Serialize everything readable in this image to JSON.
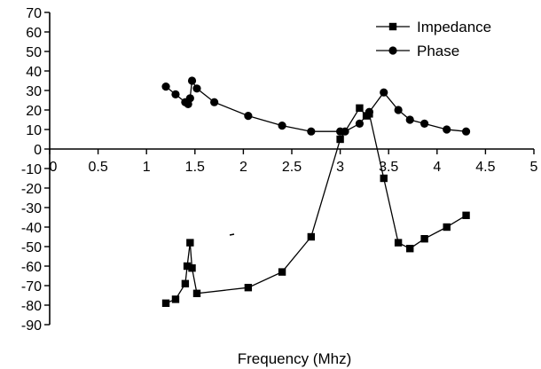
{
  "chart_data": {
    "type": "line",
    "title": "",
    "xlabel": "Frequency (Mhz)",
    "ylabel": "",
    "xlim": [
      0,
      5
    ],
    "ylim": [
      -90,
      70
    ],
    "xticks": [
      "0",
      "0.5",
      "1",
      "1.5",
      "2",
      "2.5",
      "3",
      "3.5",
      "4",
      "4.5",
      "5"
    ],
    "yticks": [
      "70",
      "60",
      "50",
      "40",
      "30",
      "20",
      "10",
      "0",
      "-10",
      "-20",
      "-30",
      "-40",
      "-50",
      "-60",
      "-70",
      "-80",
      "-90"
    ],
    "grid": false,
    "legend": "top-right",
    "series": [
      {
        "name": "Impedance",
        "marker": "square",
        "color": "#000000",
        "points": [
          [
            1.2,
            -79
          ],
          [
            1.3,
            -77
          ],
          [
            1.4,
            -69
          ],
          [
            1.42,
            -60
          ],
          [
            1.45,
            -48
          ],
          [
            1.47,
            -61
          ],
          [
            1.52,
            -74
          ],
          [
            2.05,
            -71
          ],
          [
            2.4,
            -63
          ],
          [
            2.7,
            -45
          ],
          [
            3.0,
            5
          ],
          [
            3.2,
            21
          ],
          [
            3.27,
            17
          ],
          [
            3.3,
            18
          ],
          [
            3.45,
            -15
          ],
          [
            3.6,
            -48
          ],
          [
            3.72,
            -51
          ],
          [
            3.87,
            -46
          ],
          [
            4.1,
            -40
          ],
          [
            4.3,
            -34
          ]
        ]
      },
      {
        "name": "Phase",
        "marker": "circle",
        "color": "#000000",
        "points": [
          [
            1.2,
            32
          ],
          [
            1.3,
            28
          ],
          [
            1.4,
            24
          ],
          [
            1.43,
            23
          ],
          [
            1.45,
            26
          ],
          [
            1.47,
            35
          ],
          [
            1.52,
            31
          ],
          [
            1.7,
            24
          ],
          [
            2.05,
            17
          ],
          [
            2.4,
            12
          ],
          [
            2.7,
            9
          ],
          [
            3.0,
            9
          ],
          [
            3.05,
            9
          ],
          [
            3.2,
            13
          ],
          [
            3.3,
            19
          ],
          [
            3.45,
            29
          ],
          [
            3.6,
            20
          ],
          [
            3.72,
            15
          ],
          [
            3.87,
            13
          ],
          [
            4.1,
            10
          ],
          [
            4.3,
            9
          ]
        ]
      }
    ]
  }
}
